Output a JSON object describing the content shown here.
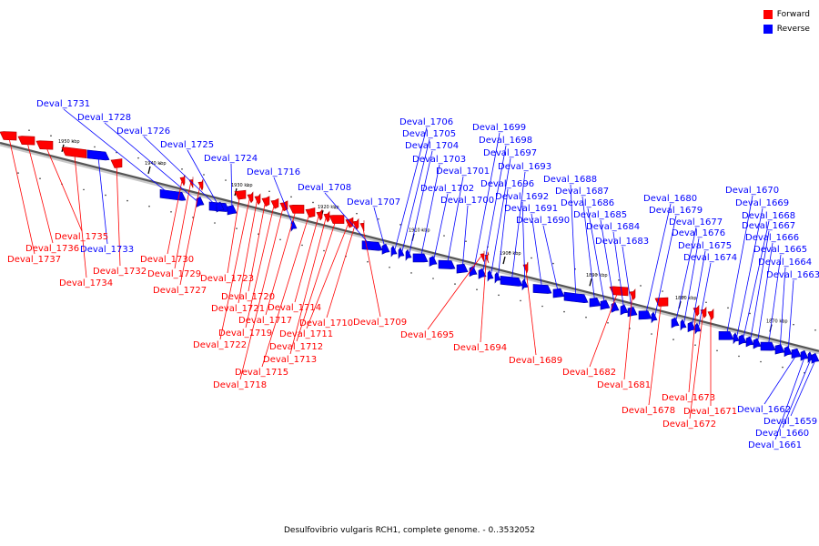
{
  "legend": {
    "forward_label": "Forward",
    "forward_color": "#ff0000",
    "reverse_label": "Reverse",
    "reverse_color": "#0000ff"
  },
  "caption": "Desulfovibrio vulgaris RCH1, complete genome. - 0..3532052",
  "scale": {
    "ticks": [
      "1950 kbp",
      "1940 kbp",
      "1930 kbp",
      "1920 kbp",
      "1910 kbp",
      "1900 kbp",
      "1890 kbp",
      "1880 kbp",
      "1870 kbp"
    ]
  },
  "genes": [
    {
      "id": "Deval_1737",
      "strand": "forward"
    },
    {
      "id": "Deval_1736",
      "strand": "forward"
    },
    {
      "id": "Deval_1735",
      "strand": "forward"
    },
    {
      "id": "Deval_1734",
      "strand": "forward"
    },
    {
      "id": "Deval_1733",
      "strand": "reverse"
    },
    {
      "id": "Deval_1732",
      "strand": "forward"
    },
    {
      "id": "Deval_1731",
      "strand": "reverse"
    },
    {
      "id": "Deval_1730",
      "strand": "forward"
    },
    {
      "id": "Deval_1729",
      "strand": "forward"
    },
    {
      "id": "Deval_1728",
      "strand": "reverse"
    },
    {
      "id": "Deval_1727",
      "strand": "forward"
    },
    {
      "id": "Deval_1726",
      "strand": "reverse"
    },
    {
      "id": "Deval_1725",
      "strand": "reverse"
    },
    {
      "id": "Deval_1724",
      "strand": "reverse"
    },
    {
      "id": "Deval_1723",
      "strand": "forward"
    },
    {
      "id": "Deval_1722",
      "strand": "forward"
    },
    {
      "id": "Deval_1721",
      "strand": "forward"
    },
    {
      "id": "Deval_1720",
      "strand": "forward"
    },
    {
      "id": "Deval_1719",
      "strand": "forward"
    },
    {
      "id": "Deval_1718",
      "strand": "forward"
    },
    {
      "id": "Deval_1717",
      "strand": "forward"
    },
    {
      "id": "Deval_1716",
      "strand": "reverse"
    },
    {
      "id": "Deval_1715",
      "strand": "forward"
    },
    {
      "id": "Deval_1714",
      "strand": "forward"
    },
    {
      "id": "Deval_1713",
      "strand": "forward"
    },
    {
      "id": "Deval_1712",
      "strand": "forward"
    },
    {
      "id": "Deval_1711",
      "strand": "forward"
    },
    {
      "id": "Deval_1710",
      "strand": "forward"
    },
    {
      "id": "Deval_1709",
      "strand": "forward"
    },
    {
      "id": "Deval_1708",
      "strand": "reverse"
    },
    {
      "id": "Deval_1707",
      "strand": "reverse"
    },
    {
      "id": "Deval_1706",
      "strand": "reverse"
    },
    {
      "id": "Deval_1705",
      "strand": "reverse"
    },
    {
      "id": "Deval_1704",
      "strand": "reverse"
    },
    {
      "id": "Deval_1703",
      "strand": "reverse"
    },
    {
      "id": "Deval_1702",
      "strand": "reverse"
    },
    {
      "id": "Deval_1701",
      "strand": "reverse"
    },
    {
      "id": "Deval_1700",
      "strand": "reverse"
    },
    {
      "id": "Deval_1699",
      "strand": "reverse"
    },
    {
      "id": "Deval_1698",
      "strand": "reverse"
    },
    {
      "id": "Deval_1697",
      "strand": "reverse"
    },
    {
      "id": "Deval_1696",
      "strand": "reverse"
    },
    {
      "id": "Deval_1695",
      "strand": "forward"
    },
    {
      "id": "Deval_1694",
      "strand": "forward"
    },
    {
      "id": "Deval_1693",
      "strand": "reverse"
    },
    {
      "id": "Deval_1692",
      "strand": "reverse"
    },
    {
      "id": "Deval_1691",
      "strand": "reverse"
    },
    {
      "id": "Deval_1690",
      "strand": "reverse"
    },
    {
      "id": "Deval_1689",
      "strand": "forward"
    },
    {
      "id": "Deval_1688",
      "strand": "reverse"
    },
    {
      "id": "Deval_1687",
      "strand": "reverse"
    },
    {
      "id": "Deval_1686",
      "strand": "reverse"
    },
    {
      "id": "Deval_1685",
      "strand": "reverse"
    },
    {
      "id": "Deval_1684",
      "strand": "reverse"
    },
    {
      "id": "Deval_1683",
      "strand": "reverse"
    },
    {
      "id": "Deval_1682",
      "strand": "forward"
    },
    {
      "id": "Deval_1681",
      "strand": "forward"
    },
    {
      "id": "Deval_1680",
      "strand": "reverse"
    },
    {
      "id": "Deval_1679",
      "strand": "reverse"
    },
    {
      "id": "Deval_1678",
      "strand": "forward"
    },
    {
      "id": "Deval_1677",
      "strand": "reverse"
    },
    {
      "id": "Deval_1676",
      "strand": "reverse"
    },
    {
      "id": "Deval_1675",
      "strand": "reverse"
    },
    {
      "id": "Deval_1674",
      "strand": "reverse"
    },
    {
      "id": "Deval_1673",
      "strand": "forward"
    },
    {
      "id": "Deval_1672",
      "strand": "forward"
    },
    {
      "id": "Deval_1671",
      "strand": "forward"
    },
    {
      "id": "Deval_1670",
      "strand": "reverse"
    },
    {
      "id": "Deval_1669",
      "strand": "reverse"
    },
    {
      "id": "Deval_1668",
      "strand": "reverse"
    },
    {
      "id": "Deval_1667",
      "strand": "reverse"
    },
    {
      "id": "Deval_1666",
      "strand": "reverse"
    },
    {
      "id": "Deval_1665",
      "strand": "reverse"
    },
    {
      "id": "Deval_1664",
      "strand": "reverse"
    },
    {
      "id": "Deval_1663",
      "strand": "reverse"
    },
    {
      "id": "Deval_1662",
      "strand": "reverse"
    },
    {
      "id": "Deval_1661",
      "strand": "reverse"
    },
    {
      "id": "Deval_1660",
      "strand": "reverse"
    },
    {
      "id": "Deval_1659",
      "strand": "reverse"
    }
  ]
}
